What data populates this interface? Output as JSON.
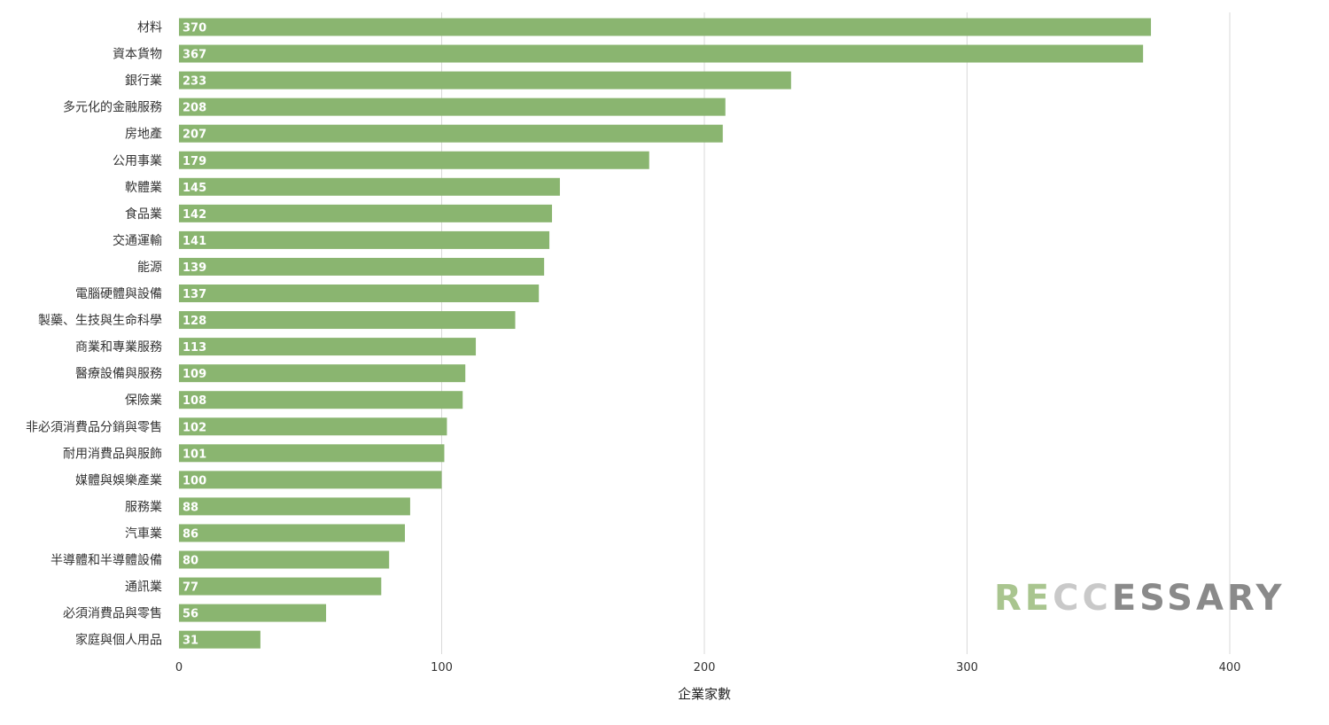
{
  "chart_data": {
    "type": "bar",
    "orientation": "horizontal",
    "categories": [
      "材料",
      "資本貨物",
      "銀行業",
      "多元化的金融服務",
      "房地產",
      "公用事業",
      "軟體業",
      "食品業",
      "交通運輸",
      "能源",
      "電腦硬體與設備",
      "製藥、生技與生命科學",
      "商業和專業服務",
      "醫療設備與服務",
      "保險業",
      "非必須消費品分銷與零售",
      "耐用消費品與服飾",
      "媒體與娛樂產業",
      "服務業",
      "汽車業",
      "半導體和半導體設備",
      "通訊業",
      "必須消費品與零售",
      "家庭與個人用品"
    ],
    "values": [
      370,
      367,
      233,
      208,
      207,
      179,
      145,
      142,
      141,
      139,
      137,
      128,
      113,
      109,
      108,
      102,
      101,
      100,
      88,
      86,
      80,
      77,
      56,
      31
    ],
    "xlabel": "企業家數",
    "ylabel": "",
    "xlim": [
      0,
      400
    ],
    "xticks": [
      0,
      100,
      200,
      300,
      400
    ],
    "grid": true,
    "data_labels": true,
    "bar_color": "#8ab570",
    "grid_color": "#d9d9d9"
  },
  "watermark": {
    "prefix": "RE",
    "middle": "CC",
    "suffix": "ESSARY",
    "prefix_color": "#a9c58f",
    "middle_color": "#c9c9c9",
    "suffix_color": "#8a8a8a"
  }
}
